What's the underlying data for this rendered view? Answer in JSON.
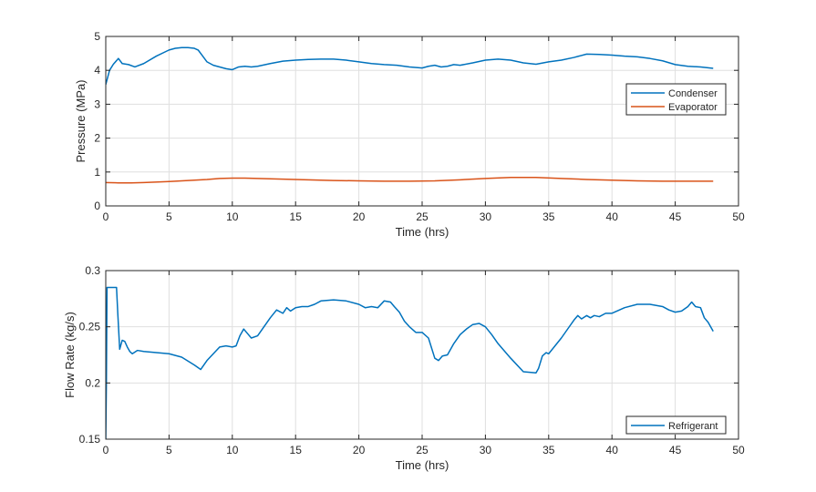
{
  "chart_data": [
    {
      "type": "line",
      "xlabel": "Time (hrs)",
      "ylabel": "Pressure (MPa)",
      "xlim": [
        0,
        50
      ],
      "ylim": [
        0,
        5
      ],
      "xticks": [
        0,
        5,
        10,
        15,
        20,
        25,
        30,
        35,
        40,
        45,
        50
      ],
      "yticks": [
        0,
        1,
        2,
        3,
        4,
        5
      ],
      "grid": true,
      "legend_position": "right",
      "series": [
        {
          "name": "Condenser",
          "color": "#0072BD",
          "x": [
            0,
            0.3,
            0.6,
            1.0,
            1.3,
            1.8,
            2.3,
            3,
            4,
            5,
            5.5,
            6,
            6.5,
            7,
            7.3,
            7.6,
            8,
            8.5,
            9,
            9.5,
            10,
            10.5,
            11,
            11.5,
            12,
            13,
            14,
            15,
            16,
            17,
            18,
            19,
            20,
            21,
            22,
            23,
            24,
            25,
            25.5,
            26,
            26.5,
            27,
            27.5,
            28,
            29,
            30,
            31,
            32,
            33,
            34,
            35,
            36,
            37,
            38,
            39,
            40,
            41,
            42,
            43,
            44,
            45,
            46,
            47,
            48
          ],
          "y": [
            3.58,
            4.0,
            4.18,
            4.35,
            4.2,
            4.17,
            4.1,
            4.2,
            4.42,
            4.6,
            4.65,
            4.67,
            4.67,
            4.65,
            4.6,
            4.45,
            4.25,
            4.15,
            4.1,
            4.05,
            4.02,
            4.1,
            4.12,
            4.1,
            4.12,
            4.2,
            4.27,
            4.3,
            4.32,
            4.33,
            4.33,
            4.3,
            4.25,
            4.2,
            4.17,
            4.15,
            4.1,
            4.07,
            4.12,
            4.15,
            4.1,
            4.12,
            4.17,
            4.15,
            4.22,
            4.3,
            4.33,
            4.3,
            4.22,
            4.18,
            4.25,
            4.3,
            4.38,
            4.48,
            4.47,
            4.45,
            4.42,
            4.4,
            4.35,
            4.28,
            4.17,
            4.12,
            4.1,
            4.06
          ]
        },
        {
          "name": "Evaporator",
          "color": "#D95319",
          "x": [
            0,
            1,
            2,
            3,
            5,
            7,
            8,
            9,
            10,
            11,
            12,
            14,
            16,
            18,
            20,
            22,
            24,
            26,
            28,
            30,
            32,
            34,
            36,
            38,
            40,
            42,
            44,
            46,
            48
          ],
          "y": [
            0.69,
            0.68,
            0.68,
            0.69,
            0.72,
            0.76,
            0.78,
            0.81,
            0.82,
            0.82,
            0.81,
            0.79,
            0.77,
            0.75,
            0.74,
            0.73,
            0.73,
            0.74,
            0.77,
            0.81,
            0.84,
            0.84,
            0.81,
            0.78,
            0.76,
            0.74,
            0.73,
            0.73,
            0.73
          ]
        }
      ]
    },
    {
      "type": "line",
      "xlabel": "Time (hrs)",
      "ylabel": "Flow Rate (kg/s)",
      "xlim": [
        0,
        50
      ],
      "ylim": [
        0.15,
        0.3
      ],
      "xticks": [
        0,
        5,
        10,
        15,
        20,
        25,
        30,
        35,
        40,
        45,
        50
      ],
      "yticks": [
        0.15,
        0.2,
        0.25,
        0.3
      ],
      "grid": true,
      "legend_position": "bottom-right",
      "series": [
        {
          "name": "Refrigerant",
          "color": "#0072BD",
          "x": [
            0,
            0.05,
            0.1,
            0.3,
            0.5,
            0.7,
            0.85,
            0.95,
            1.1,
            1.3,
            1.5,
            1.7,
            1.9,
            2.1,
            2.5,
            3,
            4,
            5,
            6,
            7,
            7.5,
            8,
            8.5,
            9,
            9.5,
            10,
            10.3,
            10.6,
            10.9,
            11.2,
            11.5,
            12,
            12.5,
            13,
            13.5,
            14,
            14.3,
            14.6,
            15,
            15.5,
            16,
            16.5,
            17,
            18,
            19,
            20,
            20.5,
            21,
            21.5,
            22,
            22.5,
            22.8,
            23.2,
            23.6,
            24,
            24.5,
            25,
            25.5,
            26,
            26.3,
            26.6,
            27,
            27.5,
            28,
            28.5,
            29,
            29.5,
            30,
            30.5,
            31,
            32,
            33,
            34,
            34.2,
            34.5,
            34.8,
            35,
            35.5,
            36,
            36.5,
            37,
            37.3,
            37.6,
            38,
            38.3,
            38.6,
            39,
            39.5,
            40,
            41,
            42,
            43,
            44,
            44.5,
            45,
            45.5,
            46,
            46.3,
            46.6,
            47,
            47.3,
            47.6,
            48
          ],
          "y": [
            0.15,
            0.2,
            0.285,
            0.285,
            0.285,
            0.285,
            0.285,
            0.262,
            0.23,
            0.238,
            0.237,
            0.232,
            0.228,
            0.226,
            0.229,
            0.228,
            0.227,
            0.226,
            0.223,
            0.216,
            0.212,
            0.22,
            0.226,
            0.232,
            0.233,
            0.232,
            0.233,
            0.242,
            0.248,
            0.244,
            0.24,
            0.242,
            0.25,
            0.258,
            0.265,
            0.262,
            0.267,
            0.264,
            0.267,
            0.268,
            0.268,
            0.27,
            0.273,
            0.274,
            0.273,
            0.27,
            0.267,
            0.268,
            0.267,
            0.273,
            0.272,
            0.268,
            0.263,
            0.255,
            0.25,
            0.245,
            0.245,
            0.24,
            0.222,
            0.22,
            0.224,
            0.225,
            0.235,
            0.243,
            0.248,
            0.252,
            0.253,
            0.25,
            0.243,
            0.235,
            0.222,
            0.21,
            0.209,
            0.213,
            0.224,
            0.227,
            0.226,
            0.233,
            0.24,
            0.248,
            0.256,
            0.26,
            0.257,
            0.26,
            0.258,
            0.26,
            0.259,
            0.262,
            0.262,
            0.267,
            0.27,
            0.27,
            0.268,
            0.265,
            0.263,
            0.264,
            0.268,
            0.272,
            0.268,
            0.267,
            0.258,
            0.254,
            0.246
          ]
        }
      ]
    }
  ]
}
